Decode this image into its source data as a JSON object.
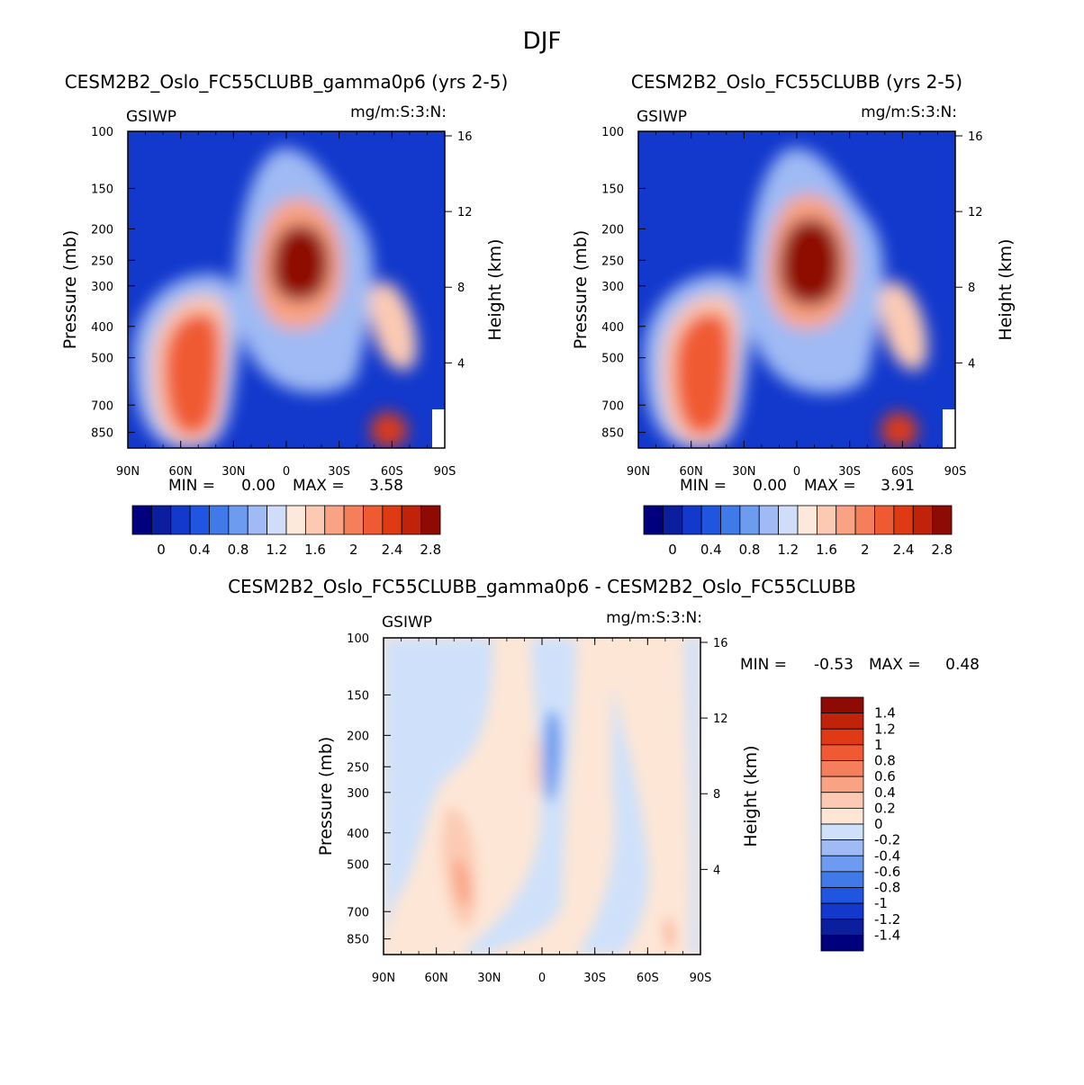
{
  "figure_title": "DJF",
  "chart_data": [
    {
      "type": "heatmap",
      "title": "CESM2B2_Oslo_FC55CLUBB_gamma0p6 (yrs 2-5)",
      "left_label": "GSIWP",
      "right_label": "mg/m:S:3:N:",
      "xlabel": "",
      "ylabel": "Pressure (mb)",
      "y2label": "Height (km)",
      "x_ticks": [
        "90N",
        "60N",
        "30N",
        "0",
        "30S",
        "60S",
        "90S"
      ],
      "y_ticks": [
        "100",
        "150",
        "200",
        "250",
        "300",
        "400",
        "500",
        "700",
        "850"
      ],
      "y2_ticks": [
        "16",
        "12",
        "8",
        "4"
      ],
      "stats": {
        "min_label": "MIN =",
        "min": "0.00",
        "max_label": "MAX =",
        "max": "3.58"
      },
      "colorbar_labels": [
        "0",
        "0.4",
        "0.8",
        "1.2",
        "1.6",
        "2",
        "2.4",
        "2.8"
      ],
      "levels": [
        -0.2,
        0,
        0.2,
        0.4,
        0.6,
        0.8,
        1.0,
        1.2,
        1.4,
        1.6,
        1.8,
        2.0,
        2.2,
        2.4,
        2.6,
        2.8
      ],
      "features": [
        {
          "lat": 45,
          "p": 560,
          "value": 2.6
        },
        {
          "lat": -5,
          "p": 250,
          "value": 3.58
        },
        {
          "lat": -58,
          "p": 420,
          "value": 1.7
        },
        {
          "lat": -57,
          "p": 850,
          "value": 2.5
        }
      ]
    },
    {
      "type": "heatmap",
      "title": "CESM2B2_Oslo_FC55CLUBB (yrs 2-5)",
      "left_label": "GSIWP",
      "right_label": "mg/m:S:3:N:",
      "xlabel": "",
      "ylabel": "Pressure (mb)",
      "y2label": "Height (km)",
      "x_ticks": [
        "90N",
        "60N",
        "30N",
        "0",
        "30S",
        "60S",
        "90S"
      ],
      "y_ticks": [
        "100",
        "150",
        "200",
        "250",
        "300",
        "400",
        "500",
        "700",
        "850"
      ],
      "y2_ticks": [
        "16",
        "12",
        "8",
        "4"
      ],
      "stats": {
        "min_label": "MIN =",
        "min": "0.00",
        "max_label": "MAX =",
        "max": "3.91"
      },
      "colorbar_labels": [
        "0",
        "0.4",
        "0.8",
        "1.2",
        "1.6",
        "2",
        "2.4",
        "2.8"
      ],
      "levels": [
        -0.2,
        0,
        0.2,
        0.4,
        0.6,
        0.8,
        1.0,
        1.2,
        1.4,
        1.6,
        1.8,
        2.0,
        2.2,
        2.4,
        2.6,
        2.8
      ],
      "features": [
        {
          "lat": 50,
          "p": 560,
          "value": 2.7
        },
        {
          "lat": -8,
          "p": 250,
          "value": 3.91
        },
        {
          "lat": -57,
          "p": 420,
          "value": 1.8
        },
        {
          "lat": -56,
          "p": 850,
          "value": 2.6
        }
      ]
    },
    {
      "type": "heatmap",
      "title": "CESM2B2_Oslo_FC55CLUBB_gamma0p6 - CESM2B2_Oslo_FC55CLUBB",
      "left_label": "GSIWP",
      "right_label": "mg/m:S:3:N:",
      "xlabel": "",
      "ylabel": "Pressure (mb)",
      "y2label": "Height (km)",
      "x_ticks": [
        "90N",
        "60N",
        "30N",
        "0",
        "30S",
        "60S",
        "90S"
      ],
      "y_ticks": [
        "100",
        "150",
        "200",
        "250",
        "300",
        "400",
        "500",
        "700",
        "850"
      ],
      "y2_ticks": [
        "16",
        "12",
        "8",
        "4"
      ],
      "stats": {
        "min_label": "MIN =",
        "min": "-0.53",
        "max_label": "MAX =",
        "max": "0.48"
      },
      "colorbar_labels": [
        "1.4",
        "1.2",
        "1",
        "0.8",
        "0.6",
        "0.4",
        "0.2",
        "0",
        "-0.2",
        "-0.4",
        "-0.6",
        "-0.8",
        "-1",
        "-1.2",
        "-1.4"
      ],
      "levels": [
        -1.4,
        -1.2,
        -1.0,
        -0.8,
        -0.6,
        -0.4,
        -0.2,
        0,
        0.2,
        0.4,
        0.6,
        0.8,
        1.0,
        1.2,
        1.4
      ],
      "features": [
        {
          "lat": 40,
          "p": 560,
          "value": 0.48
        },
        {
          "lat": -7,
          "p": 230,
          "value": -0.53
        }
      ]
    }
  ],
  "colors": {
    "top_scale": [
      "#00007f",
      "#0b1f9e",
      "#1238cc",
      "#1f55e0",
      "#3f7ae8",
      "#6d9bef",
      "#9fbaf4",
      "#cfddf9",
      "#fde9dc",
      "#fccab3",
      "#f9a384",
      "#f57f5a",
      "#f05a32",
      "#e03a14",
      "#c0220a",
      "#8e0b03",
      "#6a0000"
    ],
    "diff_scale": [
      "#00007f",
      "#0b1f9e",
      "#1238cc",
      "#1f55e0",
      "#3f7ae8",
      "#6d9bef",
      "#9fbaf4",
      "#cfe1fa",
      "#fde6d6",
      "#fccab3",
      "#f9a384",
      "#f57f5a",
      "#f05a32",
      "#e03a14",
      "#c0220a",
      "#8e0b03"
    ]
  }
}
